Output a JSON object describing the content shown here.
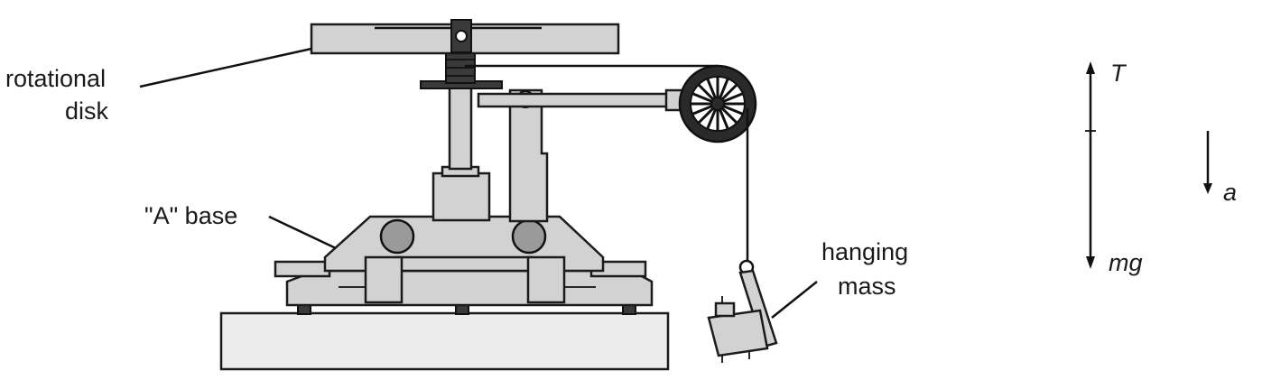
{
  "labels": {
    "rotational_disk_line1": "rotational",
    "rotational_disk_line2": "disk",
    "a_base": "\"A\" base",
    "hanging_mass_line1": "hanging",
    "hanging_mass_line2": "mass"
  },
  "free_body": {
    "tension": "T",
    "weight": "mg",
    "acceleration": "a"
  }
}
